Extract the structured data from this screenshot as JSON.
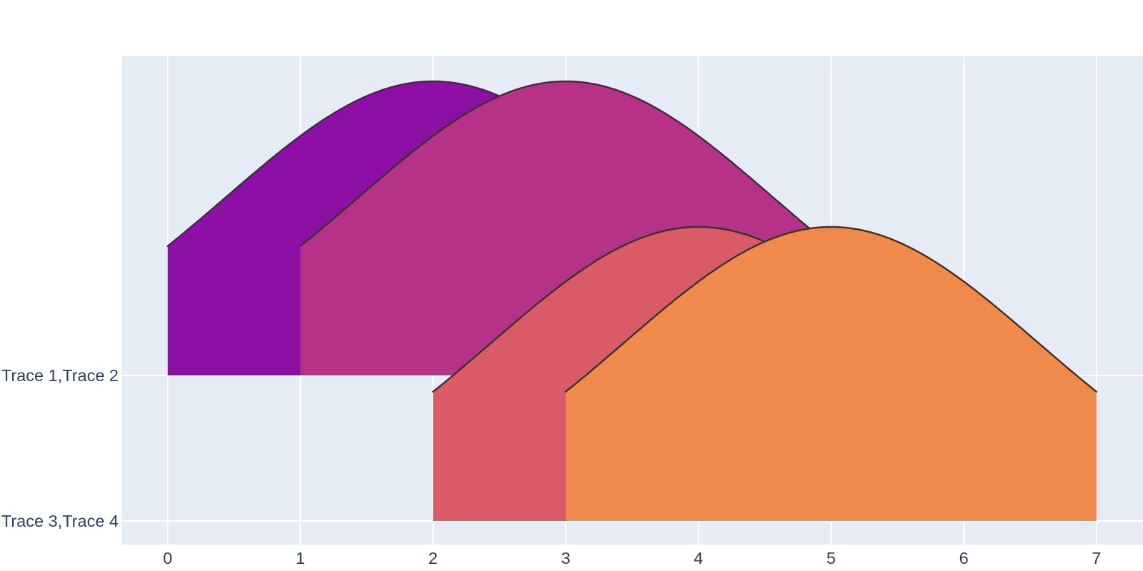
{
  "chart": {
    "plot_bgcolor": "#e5ecf6",
    "paper_bgcolor": "#ffffff",
    "grid_color": "#ffffff",
    "tick_label_color": "#2a3f5f",
    "curve_line_color": "#333333"
  },
  "chart_data": {
    "type": "area",
    "subtype": "ridgeline-density",
    "title": "",
    "xlabel": "",
    "ylabel": "",
    "grid": true,
    "legend_visible": false,
    "x_range": [
      -0.35,
      7.35
    ],
    "x_ticks": [
      "0",
      "1",
      "2",
      "3",
      "4",
      "5",
      "6",
      "7"
    ],
    "x_tick_values": [
      0,
      1,
      2,
      3,
      4,
      5,
      6,
      7
    ],
    "y_categories": [
      {
        "label": "Trace 1,Trace 2"
      },
      {
        "label": "Trace 3,Trace 4"
      }
    ],
    "series": [
      {
        "name": "Trace 1",
        "category_index": 0,
        "x_start": 0,
        "x_end": 4,
        "peak_x": 2,
        "shape": "gaussian",
        "sigma": 1.56,
        "peak_height_category_units": 2.02,
        "edge_height_category_units": 0.89,
        "fill_color": "#8e0fa6"
      },
      {
        "name": "Trace 2",
        "category_index": 0,
        "x_start": 1,
        "x_end": 5,
        "peak_x": 3,
        "shape": "gaussian",
        "sigma": 1.56,
        "peak_height_category_units": 2.02,
        "edge_height_category_units": 0.89,
        "fill_color": "#b53288"
      },
      {
        "name": "Trace 3",
        "category_index": 1,
        "x_start": 2,
        "x_end": 6,
        "peak_x": 4,
        "shape": "gaussian",
        "sigma": 1.56,
        "peak_height_category_units": 2.02,
        "edge_height_category_units": 0.89,
        "fill_color": "#da5b67"
      },
      {
        "name": "Trace 4",
        "category_index": 1,
        "x_start": 3,
        "x_end": 7,
        "peak_x": 5,
        "shape": "gaussian",
        "sigma": 1.56,
        "peak_height_category_units": 2.02,
        "edge_height_category_units": 0.89,
        "fill_color": "#f08a4c"
      }
    ]
  }
}
